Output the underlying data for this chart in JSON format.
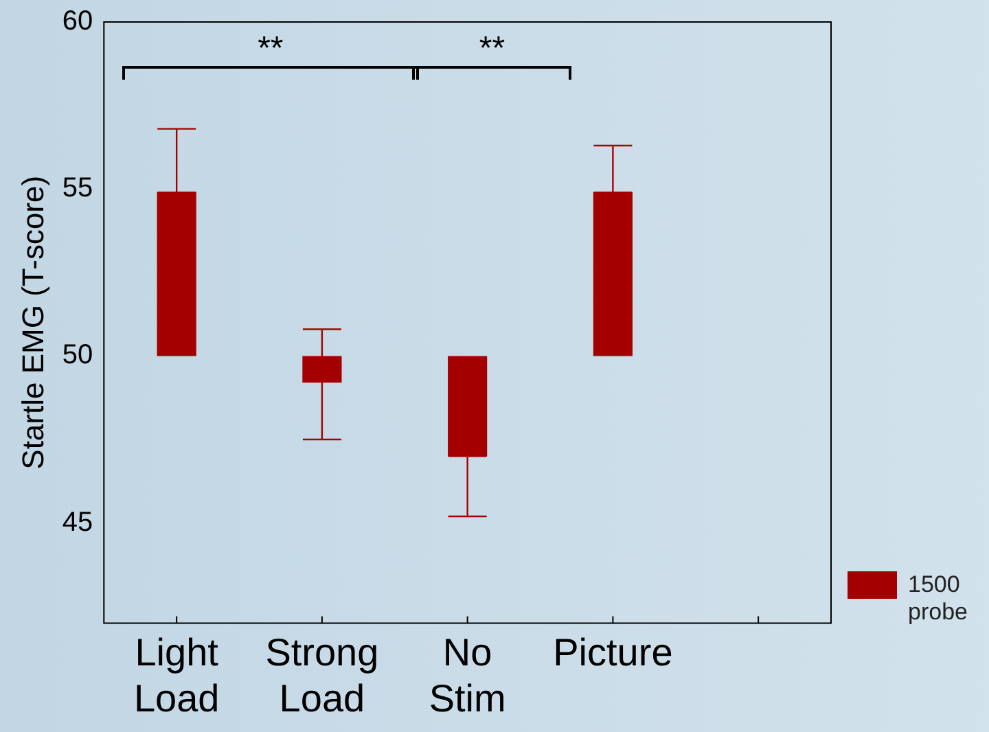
{
  "chart_data": {
    "type": "bar",
    "ylabel": "Startle EMG (T-score)",
    "categories": [
      "Light Load",
      "Strong Load",
      "No Stim",
      "Picture"
    ],
    "series": [
      {
        "name": "1500 probe",
        "color": "#a50000",
        "values": [
          4.9,
          -0.8,
          -3,
          4.9
        ],
        "base": [
          50,
          50,
          50,
          50
        ],
        "errors": [
          [
            54.9,
            56.8
          ],
          [
            47.5,
            50.8
          ],
          [
            45.2,
            47
          ],
          [
            54.9,
            56.3
          ]
        ]
      }
    ],
    "ylim": [
      42,
      60
    ],
    "yticks": [
      45,
      50,
      55,
      60
    ],
    "grid": false,
    "legend": "bottom right",
    "annotations": [
      "**",
      "**"
    ]
  }
}
